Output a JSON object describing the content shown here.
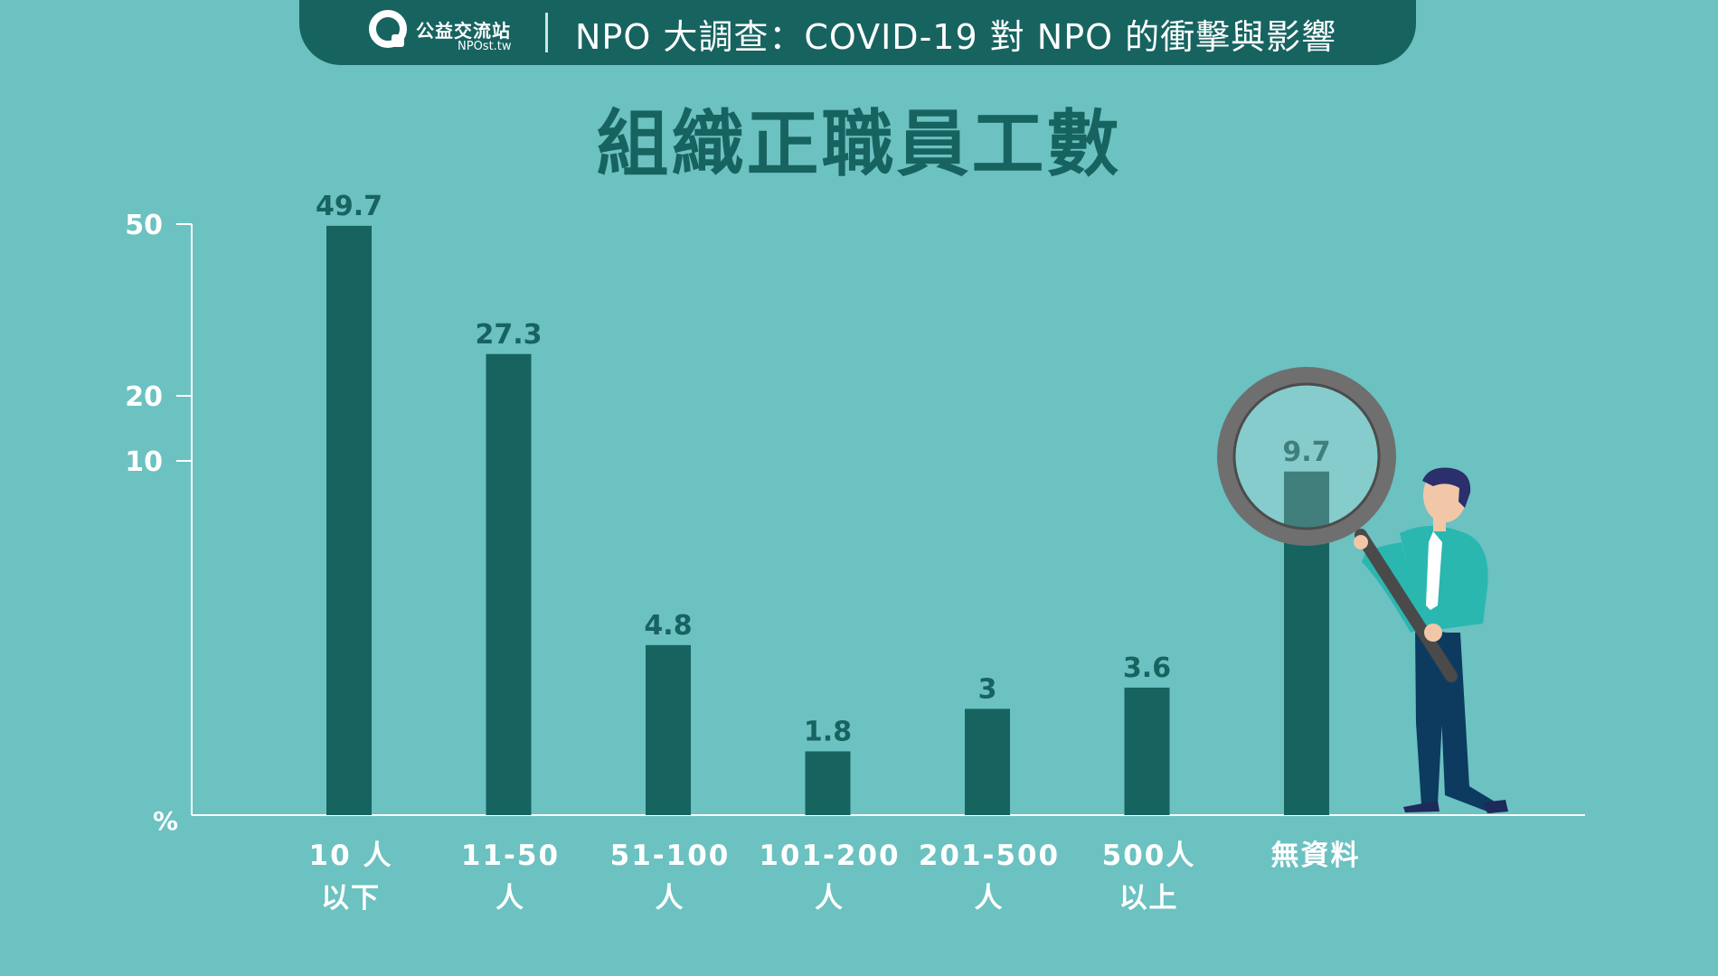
{
  "banner": {
    "logo_name": "公益交流站",
    "logo_domain": "NPOst.tw",
    "title": "NPO 大調查：COVID-19 對 NPO 的衝擊與影響"
  },
  "colors": {
    "background": "#6cc1c1",
    "banner": "#176360",
    "bar": "#176360",
    "axis": "#ffffff"
  },
  "chart_data": {
    "type": "bar",
    "title": "組織正職員工數",
    "unit": "%",
    "categories": [
      [
        "10 人",
        "以下"
      ],
      [
        "11-50",
        "人"
      ],
      [
        "51-100",
        "人"
      ],
      [
        "101-200",
        "人"
      ],
      [
        "201-500",
        "人"
      ],
      [
        "500人",
        "以上"
      ],
      [
        "無資料"
      ]
    ],
    "values": [
      49.7,
      27.3,
      4.8,
      1.8,
      3,
      3.6,
      9.7
    ],
    "value_labels": [
      "49.7",
      "27.3",
      "4.8",
      "1.8",
      "3",
      "3.6",
      "9.7"
    ],
    "yticks": [
      {
        "value": 50,
        "label": "50"
      },
      {
        "value": 20,
        "label": "20"
      },
      {
        "value": 10,
        "label": "10"
      }
    ],
    "ylim": [
      0,
      50
    ],
    "grid": false,
    "legend": "none"
  },
  "illustration": {
    "description_icon": "businessman-with-magnifier-icon"
  }
}
